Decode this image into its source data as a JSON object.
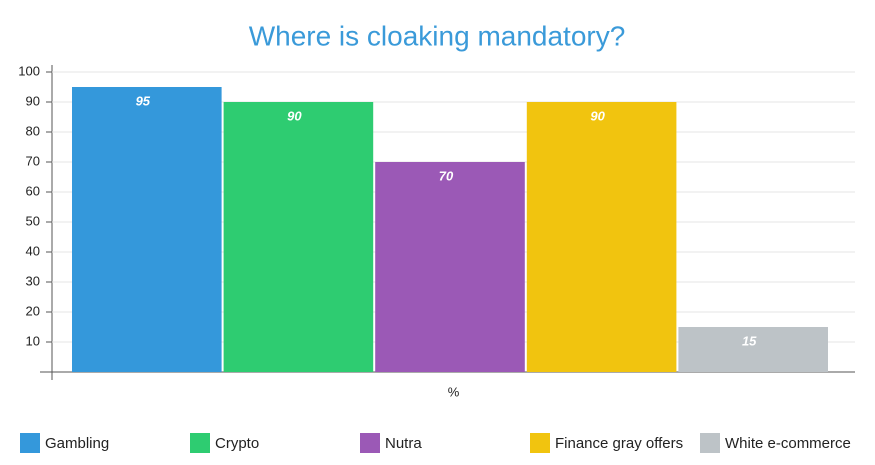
{
  "chart_data": {
    "type": "bar",
    "title": "Where is cloaking mandatory?",
    "categories": [
      "%"
    ],
    "series": [
      {
        "name": "Gambling",
        "color": "#3498db",
        "values": [
          95
        ]
      },
      {
        "name": "Crypto",
        "color": "#2ecc71",
        "values": [
          90
        ]
      },
      {
        "name": "Nutra",
        "color": "#9b59b6",
        "values": [
          70
        ]
      },
      {
        "name": "Finance gray offers",
        "color": "#f1c40f",
        "values": [
          90
        ]
      },
      {
        "name": "White e-commerce",
        "color": "#bdc3c7",
        "values": [
          15
        ]
      }
    ],
    "ylim": [
      0,
      100
    ],
    "yticks": [
      10,
      20,
      30,
      40,
      50,
      60,
      70,
      80,
      90,
      100
    ],
    "grid": true,
    "legend": "bottom"
  }
}
